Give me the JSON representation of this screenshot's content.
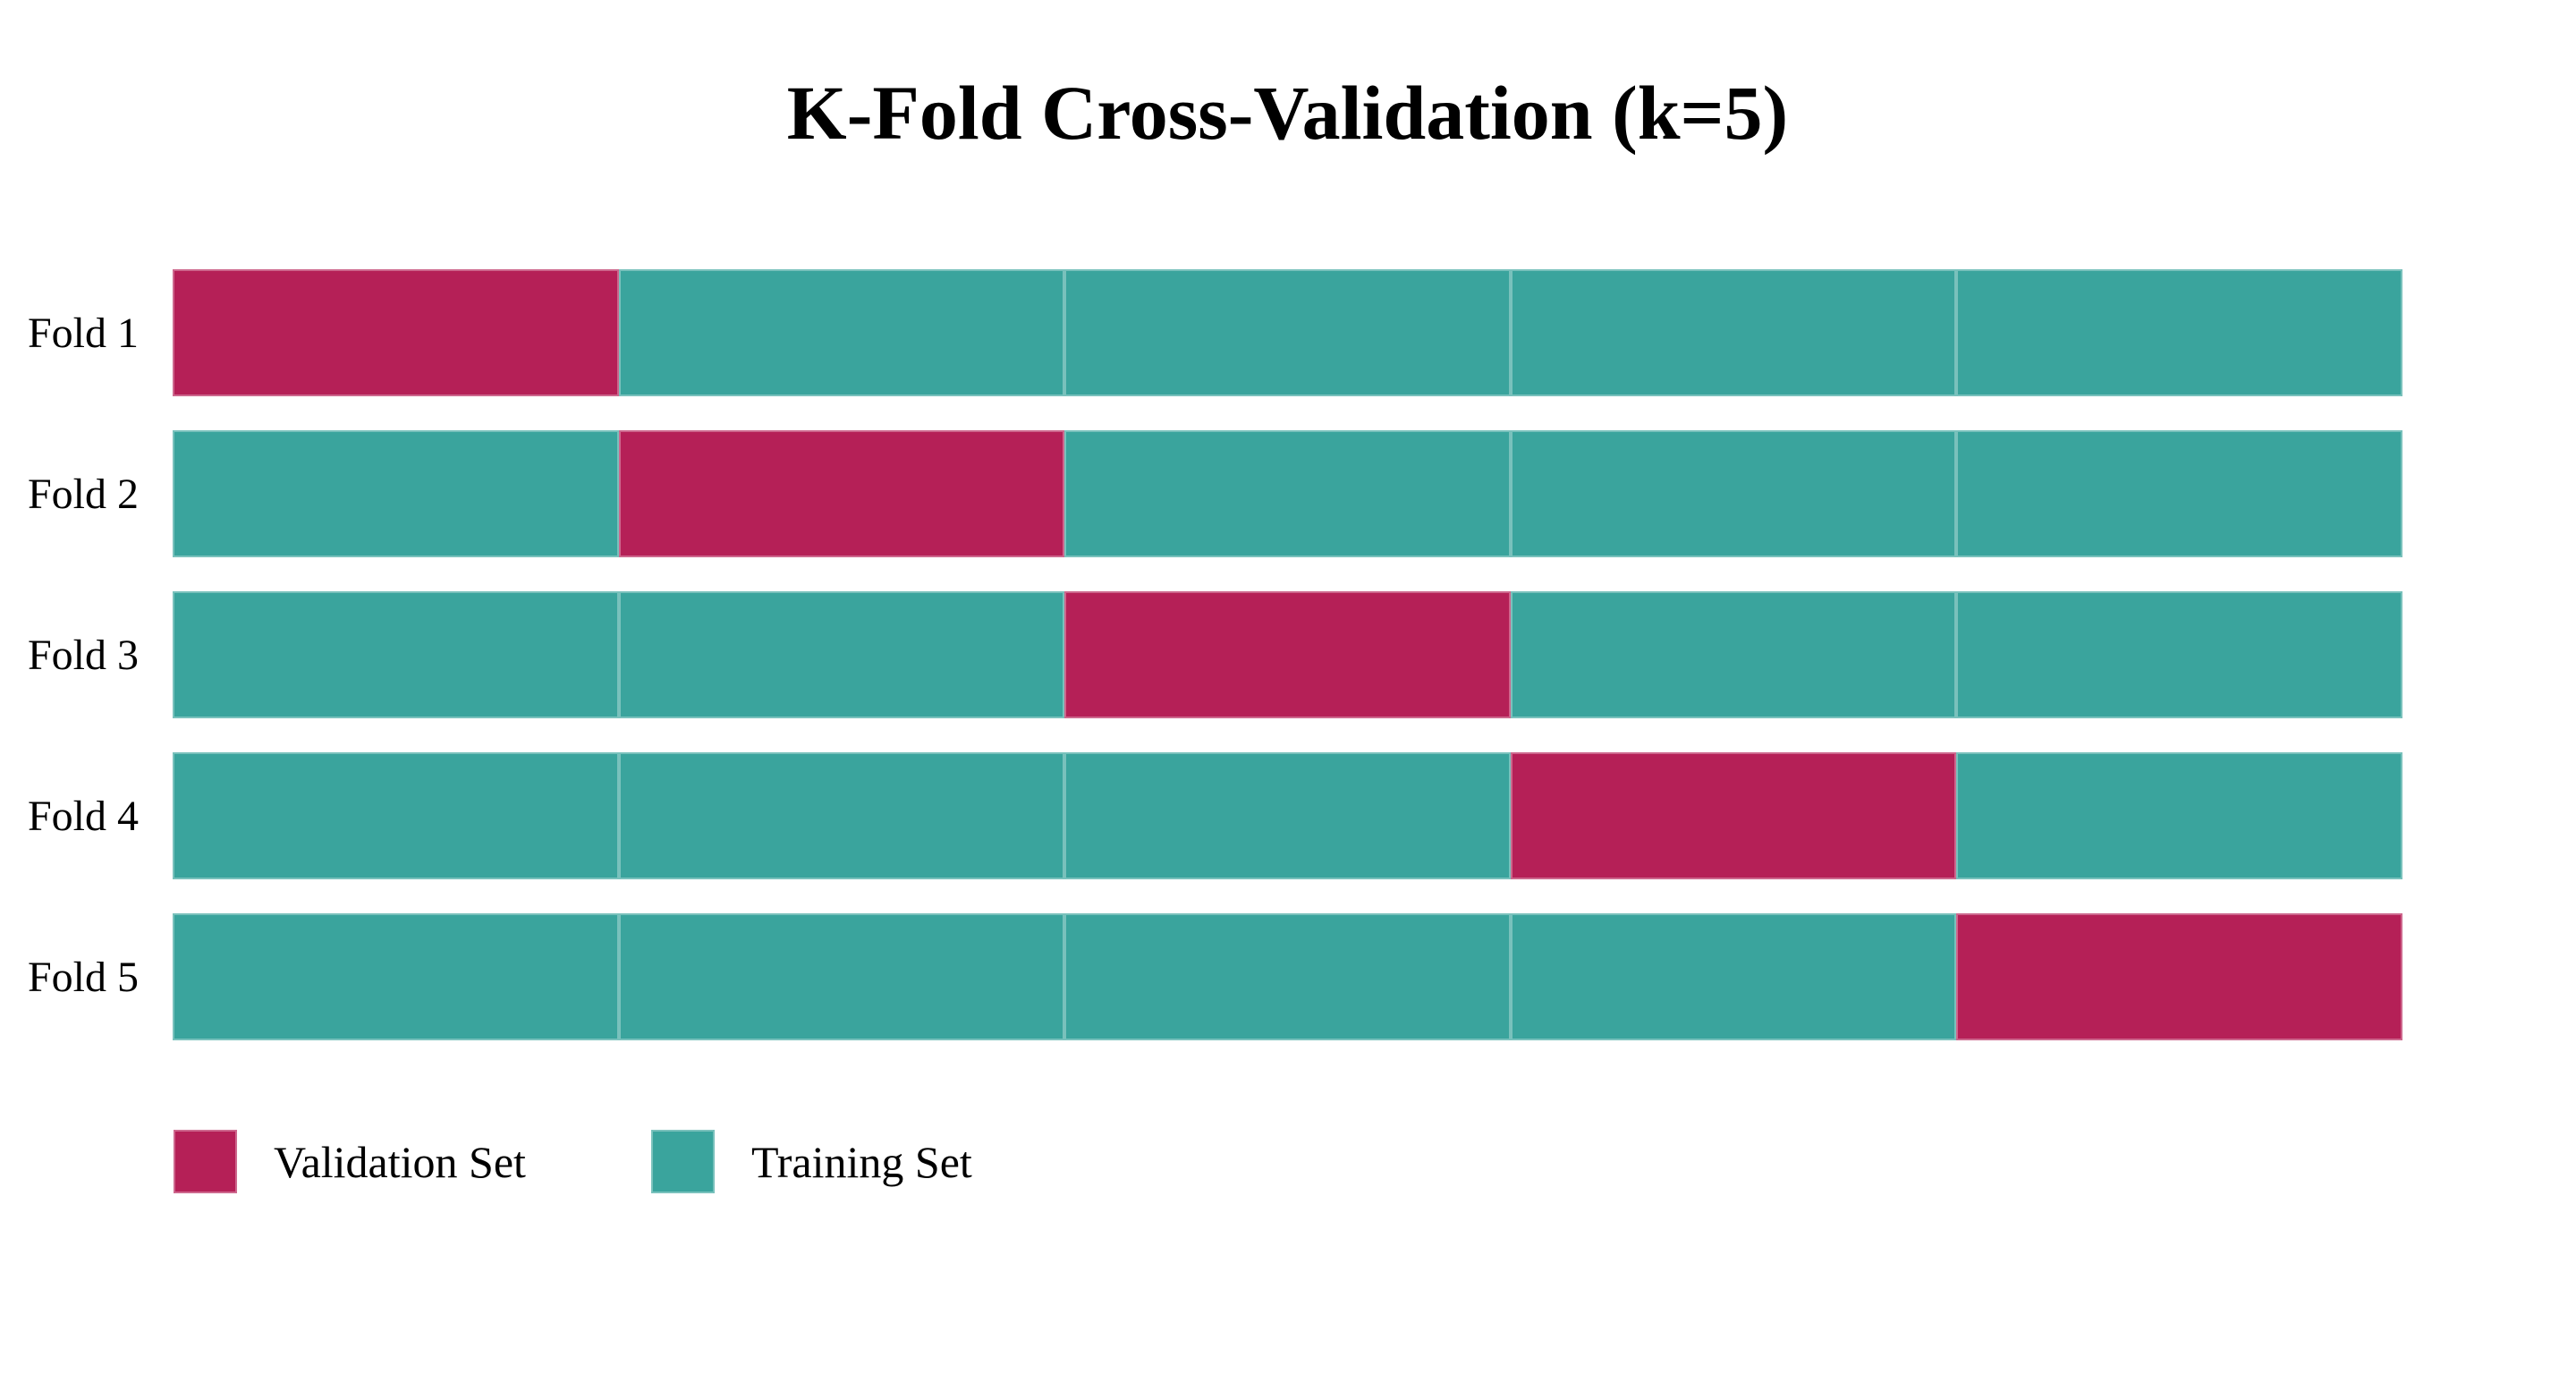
{
  "page": {
    "background": "#ffffff"
  },
  "chart_data": {
    "type": "bar",
    "subtype": "k-fold-cross-validation-diagram",
    "orientation": "horizontal",
    "stacked": true,
    "title": "K-Fold Cross-Validation (k=5)",
    "k": 5,
    "xlabel": "",
    "ylabel": "",
    "grid": false,
    "axes_visible": false,
    "categories": [
      "Fold 1",
      "Fold 2",
      "Fold 3",
      "Fold 4",
      "Fold 5"
    ],
    "segments_per_fold": 5,
    "segment_fraction": 0.2,
    "colors": {
      "validation": "#B52057",
      "training": "#3AA49D"
    },
    "rows": [
      {
        "label": "Fold 1",
        "validation_segment_index": 0,
        "segments": [
          "validation",
          "training",
          "training",
          "training",
          "training"
        ]
      },
      {
        "label": "Fold 2",
        "validation_segment_index": 1,
        "segments": [
          "training",
          "validation",
          "training",
          "training",
          "training"
        ]
      },
      {
        "label": "Fold 3",
        "validation_segment_index": 2,
        "segments": [
          "training",
          "training",
          "validation",
          "training",
          "training"
        ]
      },
      {
        "label": "Fold 4",
        "validation_segment_index": 3,
        "segments": [
          "training",
          "training",
          "training",
          "validation",
          "training"
        ]
      },
      {
        "label": "Fold 5",
        "validation_segment_index": 4,
        "segments": [
          "training",
          "training",
          "training",
          "training",
          "validation"
        ]
      }
    ],
    "legend": {
      "position": "bottom-left",
      "items": [
        {
          "key": "validation",
          "label": "Validation Set",
          "color": "#B52057"
        },
        {
          "key": "training",
          "label": "Training Set",
          "color": "#3AA49D"
        }
      ]
    }
  }
}
